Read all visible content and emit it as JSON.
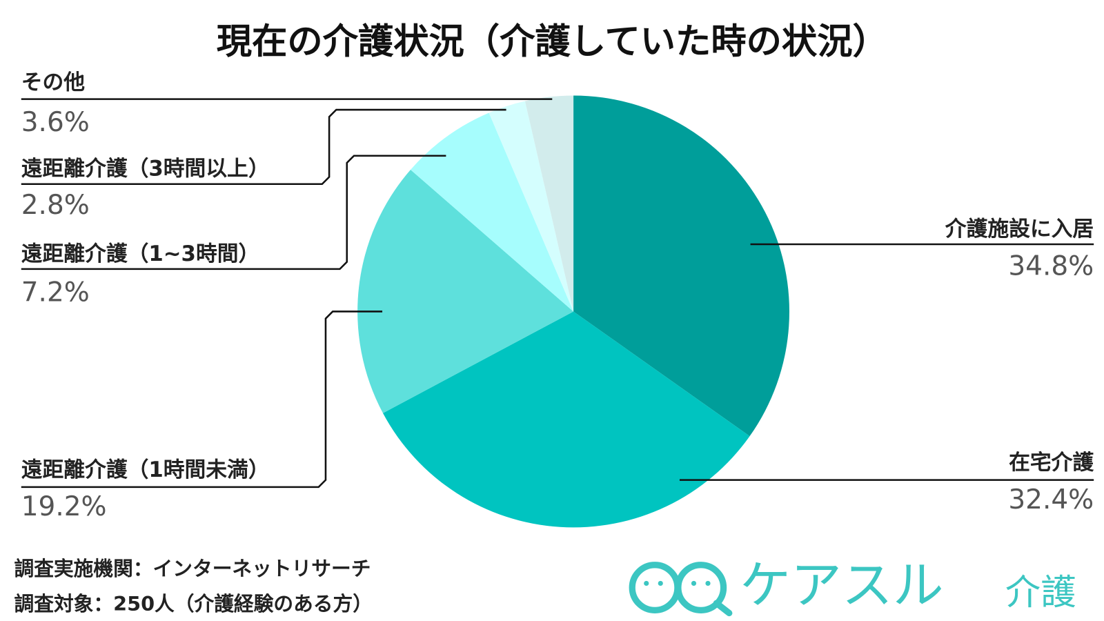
{
  "chart_data": {
    "type": "pie",
    "title": "現在の介護状況（介護していた時の状況）",
    "categories": [
      "介護施設に入居",
      "在宅介護",
      "遠距離介護（1時間未満）",
      "遠距離介護（1~3時間）",
      "遠距離介護（3時間以上）",
      "その他"
    ],
    "values": [
      34.8,
      32.4,
      19.2,
      7.2,
      2.8,
      3.6
    ],
    "value_labels": [
      "34.8%",
      "32.4%",
      "19.2%",
      "7.2%",
      "2.8%",
      "3.6%"
    ],
    "colors": [
      "#009e9a",
      "#00c4c0",
      "#5ee0dc",
      "#a6fdfd",
      "#d4fefe",
      "#d2ecec"
    ],
    "notes": [
      "調査実施機関：インターネットリサーチ",
      "調査対象：250人（介護経験のある方）"
    ],
    "logo": {
      "main": "ケアスル",
      "sub": "介護"
    }
  }
}
